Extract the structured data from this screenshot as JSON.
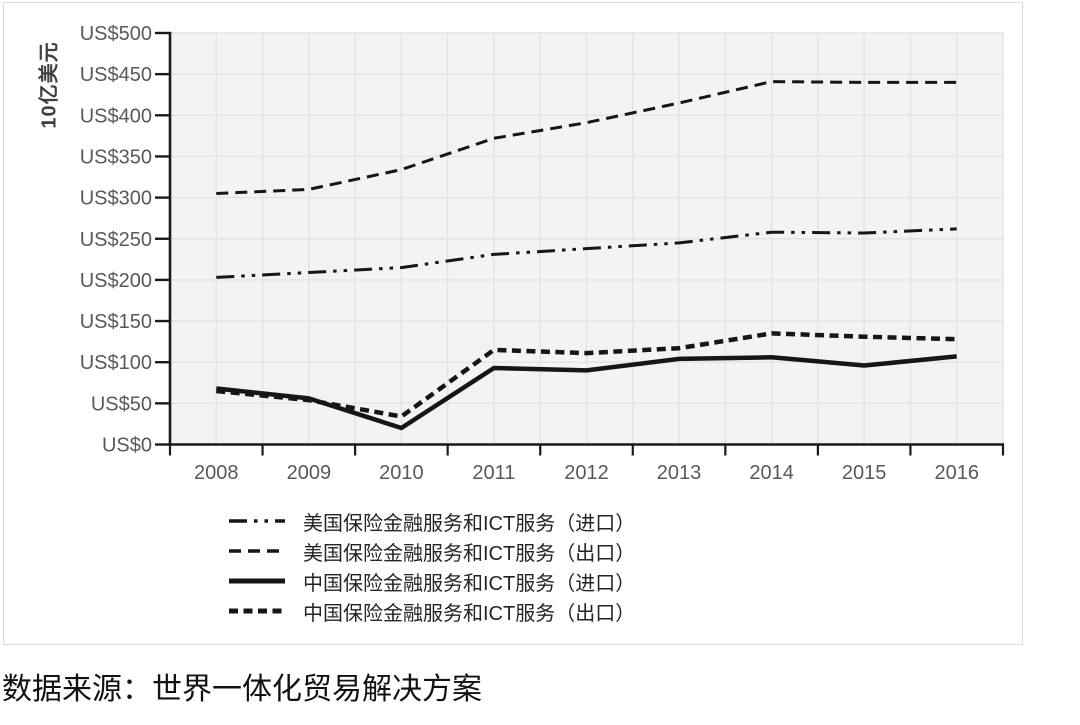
{
  "chart_data": {
    "type": "line",
    "title": "",
    "xlabel": "",
    "ylabel": "10亿美元",
    "ylim": [
      0,
      500
    ],
    "y_step": 50,
    "grid": true,
    "legend_position": "bottom-left",
    "line_color": "#161616",
    "categories": [
      "2008",
      "2009",
      "2010",
      "2011",
      "2012",
      "2013",
      "2014",
      "2015",
      "2016"
    ],
    "y_ticks": [
      "US$0",
      "US$50",
      "US$100",
      "US$150",
      "US$200",
      "US$250",
      "US$300",
      "US$350",
      "US$400",
      "US$450",
      "US$500"
    ],
    "series": [
      {
        "name": "美国保险金融服务和ICT服务（进口）",
        "line_style": "dash-dot-dot",
        "values": [
          203,
          209,
          215,
          231,
          238,
          245,
          258,
          257,
          262
        ]
      },
      {
        "name": "美国保险金融服务和ICT服务（出口）",
        "line_style": "dashed",
        "values": [
          305,
          310,
          334,
          372,
          391,
          415,
          441,
          440,
          440
        ]
      },
      {
        "name": "中国保险金融服务和ICT服务（进口）",
        "line_style": "solid",
        "values": [
          68,
          56,
          20,
          93,
          90,
          104,
          106,
          96,
          107
        ]
      },
      {
        "name": "中国保险金融服务和ICT服务（出口）",
        "line_style": "bold-short-dash",
        "values": [
          65,
          54,
          34,
          115,
          111,
          117,
          135,
          131,
          128
        ]
      }
    ]
  },
  "source_note": "数据来源：世界一体化贸易解决方案",
  "colors": {
    "plot_bg": "#f3f3f3",
    "gridline": "#e3e3e3",
    "axis_line": "#1a1a1a",
    "axis_label": "#595959",
    "card_border": "#dadada"
  }
}
